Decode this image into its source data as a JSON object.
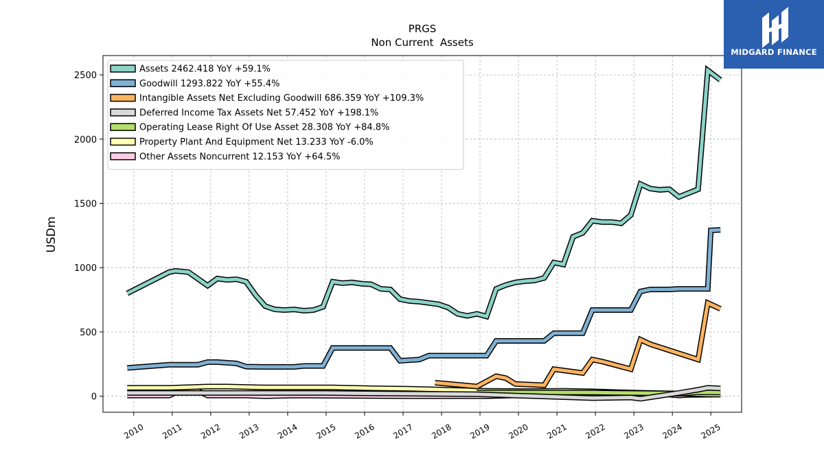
{
  "chart_data": {
    "type": "line",
    "title": "PRGS",
    "subtitle": "Non Current  Assets",
    "ylabel": "USDm",
    "xlabel": "",
    "xlim": [
      2009.2,
      2025.8
    ],
    "ylim": [
      -125,
      2650
    ],
    "yticks": [
      0,
      500,
      1000,
      1500,
      2000,
      2500
    ],
    "xticks": [
      2010,
      2011,
      2012,
      2013,
      2014,
      2015,
      2016,
      2017,
      2018,
      2019,
      2020,
      2021,
      2022,
      2023,
      2024,
      2025
    ],
    "grid": true,
    "legend_position": "top-left",
    "series": [
      {
        "name": "Assets",
        "legend": "Assets  2462.418 YoY +59.1%",
        "color": "#8dd3c7",
        "points": [
          [
            2009.83,
            800
          ],
          [
            2010.92,
            965
          ],
          [
            2011.08,
            975
          ],
          [
            2011.42,
            965
          ],
          [
            2011.92,
            860
          ],
          [
            2012.17,
            915
          ],
          [
            2012.42,
            905
          ],
          [
            2012.67,
            910
          ],
          [
            2012.92,
            890
          ],
          [
            2013.17,
            785
          ],
          [
            2013.42,
            700
          ],
          [
            2013.67,
            675
          ],
          [
            2013.92,
            670
          ],
          [
            2014.17,
            675
          ],
          [
            2014.42,
            665
          ],
          [
            2014.67,
            670
          ],
          [
            2014.92,
            695
          ],
          [
            2015.17,
            890
          ],
          [
            2015.42,
            880
          ],
          [
            2015.67,
            885
          ],
          [
            2015.92,
            875
          ],
          [
            2016.17,
            870
          ],
          [
            2016.42,
            835
          ],
          [
            2016.67,
            830
          ],
          [
            2016.92,
            755
          ],
          [
            2017.17,
            740
          ],
          [
            2017.42,
            735
          ],
          [
            2017.67,
            725
          ],
          [
            2017.92,
            715
          ],
          [
            2018.17,
            690
          ],
          [
            2018.42,
            640
          ],
          [
            2018.67,
            625
          ],
          [
            2018.92,
            640
          ],
          [
            2019.17,
            620
          ],
          [
            2019.42,
            835
          ],
          [
            2019.67,
            865
          ],
          [
            2019.92,
            885
          ],
          [
            2020.17,
            895
          ],
          [
            2020.42,
            900
          ],
          [
            2020.67,
            920
          ],
          [
            2020.92,
            1040
          ],
          [
            2021.17,
            1025
          ],
          [
            2021.42,
            1240
          ],
          [
            2021.67,
            1270
          ],
          [
            2021.92,
            1365
          ],
          [
            2022.17,
            1355
          ],
          [
            2022.42,
            1355
          ],
          [
            2022.67,
            1345
          ],
          [
            2022.92,
            1410
          ],
          [
            2023.17,
            1650
          ],
          [
            2023.42,
            1615
          ],
          [
            2023.67,
            1605
          ],
          [
            2023.92,
            1610
          ],
          [
            2024.17,
            1550
          ],
          [
            2024.42,
            1580
          ],
          [
            2024.67,
            1610
          ],
          [
            2024.92,
            2535
          ],
          [
            2025.25,
            2460
          ]
        ]
      },
      {
        "name": "Goodwill",
        "legend": "Goodwill  1293.822 YoY +55.4%",
        "color": "#80b1d3",
        "points": [
          [
            2009.83,
            220
          ],
          [
            2010.92,
            245
          ],
          [
            2011.67,
            245
          ],
          [
            2011.92,
            265
          ],
          [
            2012.17,
            265
          ],
          [
            2012.67,
            255
          ],
          [
            2012.92,
            230
          ],
          [
            2013.42,
            228
          ],
          [
            2014.17,
            228
          ],
          [
            2014.42,
            235
          ],
          [
            2014.92,
            235
          ],
          [
            2015.17,
            375
          ],
          [
            2016.67,
            375
          ],
          [
            2016.92,
            275
          ],
          [
            2017.42,
            285
          ],
          [
            2017.67,
            315
          ],
          [
            2019.17,
            315
          ],
          [
            2019.42,
            430
          ],
          [
            2020.67,
            430
          ],
          [
            2020.92,
            490
          ],
          [
            2021.67,
            490
          ],
          [
            2021.92,
            670
          ],
          [
            2022.92,
            670
          ],
          [
            2023.17,
            815
          ],
          [
            2023.42,
            830
          ],
          [
            2023.92,
            830
          ],
          [
            2024.17,
            835
          ],
          [
            2024.92,
            835
          ],
          [
            2025.0,
            1290
          ],
          [
            2025.25,
            1294
          ]
        ]
      },
      {
        "name": "Intangible Assets Net Excluding Goodwill",
        "legend": "Intangible Assets Net Excluding Goodwill  686.359 YoY +109.3%",
        "color": "#fdb462",
        "points": [
          [
            2017.83,
            105
          ],
          [
            2018.92,
            75
          ],
          [
            2019.42,
            155
          ],
          [
            2019.67,
            140
          ],
          [
            2019.92,
            95
          ],
          [
            2020.67,
            85
          ],
          [
            2020.92,
            210
          ],
          [
            2021.67,
            180
          ],
          [
            2021.92,
            285
          ],
          [
            2022.17,
            270
          ],
          [
            2022.92,
            210
          ],
          [
            2023.17,
            440
          ],
          [
            2023.42,
            405
          ],
          [
            2024.67,
            285
          ],
          [
            2024.92,
            725
          ],
          [
            2025.25,
            680
          ]
        ]
      },
      {
        "name": "Deferred Income Tax Assets Net",
        "legend": "Deferred Income Tax Assets Net  57.452 YoY +198.1%",
        "color": "#d9d9d9",
        "points": [
          [
            2009.83,
            25
          ],
          [
            2014.92,
            25
          ],
          [
            2018.92,
            15
          ],
          [
            2021.92,
            -15
          ],
          [
            2022.92,
            -10
          ],
          [
            2023.17,
            -20
          ],
          [
            2024.17,
            25
          ],
          [
            2024.67,
            50
          ],
          [
            2024.92,
            65
          ],
          [
            2025.25,
            60
          ]
        ]
      },
      {
        "name": "Operating Lease Right Of Use Asset",
        "legend": "Operating Lease Right Of Use Asset  28.308 YoY +84.8%",
        "color": "#b3de69",
        "points": [
          [
            2018.92,
            30
          ],
          [
            2019.17,
            30
          ],
          [
            2021.92,
            28
          ],
          [
            2023.92,
            22
          ],
          [
            2024.17,
            18
          ],
          [
            2024.67,
            30
          ],
          [
            2025.25,
            28
          ]
        ]
      },
      {
        "name": "Property Plant And Equipment Net",
        "legend": "Property Plant And Equipment Net  13.233 YoY -6.0%",
        "color": "#ffffb3",
        "points": [
          [
            2009.83,
            65
          ],
          [
            2010.92,
            65
          ],
          [
            2011.92,
            75
          ],
          [
            2012.42,
            75
          ],
          [
            2013.42,
            68
          ],
          [
            2014.17,
            68
          ],
          [
            2015.17,
            68
          ],
          [
            2016.17,
            62
          ],
          [
            2017.17,
            58
          ],
          [
            2018.17,
            50
          ],
          [
            2019.17,
            42
          ],
          [
            2020.17,
            40
          ],
          [
            2021.17,
            42
          ],
          [
            2021.92,
            38
          ],
          [
            2022.92,
            28
          ],
          [
            2023.92,
            22
          ],
          [
            2024.92,
            14
          ],
          [
            2025.25,
            13
          ]
        ]
      },
      {
        "name": "Other Assets Noncurrent",
        "legend": "Other Assets Noncurrent  12.153 YoY +64.5%",
        "color": "#fccde5",
        "points": [
          [
            2009.83,
            5
          ],
          [
            2010.92,
            5
          ],
          [
            2011.17,
            40
          ],
          [
            2011.67,
            40
          ],
          [
            2011.92,
            5
          ],
          [
            2012.92,
            5
          ],
          [
            2013.42,
            0
          ],
          [
            2014.17,
            5
          ],
          [
            2017.17,
            0
          ],
          [
            2018.17,
            0
          ],
          [
            2019.17,
            0
          ],
          [
            2020.17,
            8
          ],
          [
            2021.17,
            8
          ],
          [
            2022.17,
            12
          ],
          [
            2022.92,
            8
          ],
          [
            2023.92,
            12
          ],
          [
            2024.17,
            5
          ],
          [
            2024.42,
            10
          ],
          [
            2025.25,
            12
          ]
        ]
      }
    ]
  },
  "branding": {
    "logo_name": "MIDGARD FINANCE",
    "logo_color": "#2b5fb0"
  }
}
